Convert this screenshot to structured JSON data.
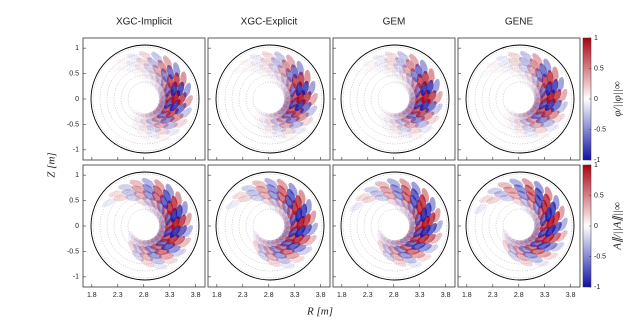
{
  "chart_data": {
    "type": "heatmap",
    "titles": [
      "XGC-Implicit",
      "XGC-Explicit",
      "GEM",
      "GENE"
    ],
    "xlabel": "R [m]",
    "ylabel": "Z [m]",
    "xlim": [
      1.63,
      3.98
    ],
    "xticks": [
      1.8,
      2.3,
      2.8,
      3.3,
      3.8
    ],
    "ylim": [
      -1.2,
      1.2
    ],
    "yticks": [
      -1,
      -0.5,
      0,
      0.5,
      1
    ],
    "colors": [
      "#1010a8",
      "#ffffff",
      "#b00010"
    ],
    "colorbars": [
      {
        "label": "φ/||φ||∞",
        "lim": [
          -1,
          1
        ],
        "ticks": [
          -1,
          -0.5,
          0,
          0.5,
          1
        ]
      },
      {
        "label": "A∥/||A∥||∞",
        "lim": [
          -1,
          1
        ],
        "ticks": [
          -1,
          -0.5,
          0,
          0.5,
          1
        ]
      }
    ]
  }
}
